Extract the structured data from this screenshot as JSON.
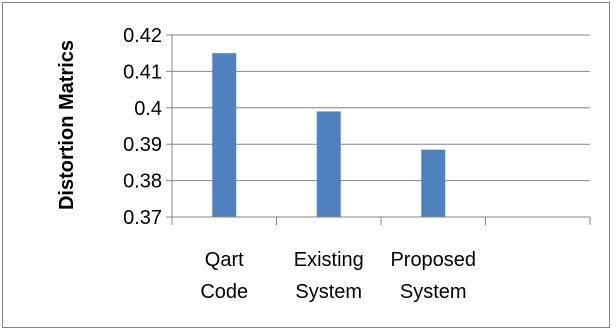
{
  "chart_data": {
    "type": "bar",
    "title": "",
    "xlabel": "",
    "ylabel": "Distortion Matrics",
    "categories": [
      [
        "Qart",
        "Code"
      ],
      [
        "Existing",
        "System"
      ],
      [
        "Proposed",
        "System"
      ],
      [
        "",
        ""
      ]
    ],
    "values": [
      0.415,
      0.399,
      0.3885,
      null
    ],
    "ylim": [
      0.37,
      0.42
    ],
    "yticks": [
      "0.37",
      "0.38",
      "0.39",
      "0.4",
      "0.41",
      "0.42"
    ],
    "grid": true,
    "legend": "none",
    "bar_color": "#4f81bd",
    "grid_color": "#868686"
  }
}
